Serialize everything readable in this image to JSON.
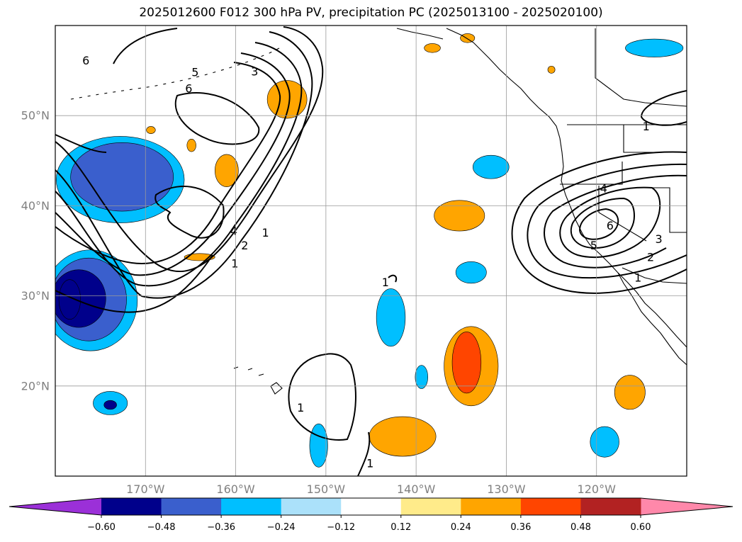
{
  "chart_data": {
    "type": "heatmap",
    "title": "2025012600 F012 300 hPa PV, precipitation PC (2025013100 - 2025020100)",
    "map": {
      "lon_range": [
        -180,
        -110
      ],
      "lat_range": [
        10,
        60
      ],
      "lat_ticks": [
        {
          "value": 20,
          "label": "20°N"
        },
        {
          "value": 30,
          "label": "30°N"
        },
        {
          "value": 40,
          "label": "40°N"
        },
        {
          "value": 50,
          "label": "50°N"
        }
      ],
      "lon_ticks": [
        {
          "value": -170,
          "label": "170°W"
        },
        {
          "value": -160,
          "label": "160°W"
        },
        {
          "value": -150,
          "label": "150°W"
        },
        {
          "value": -140,
          "label": "140°W"
        },
        {
          "value": -130,
          "label": "130°W"
        },
        {
          "value": -120,
          "label": "120°W"
        }
      ],
      "grid": true
    },
    "colorbar": {
      "levels": [
        -0.6,
        -0.48,
        -0.36,
        -0.24,
        -0.12,
        0.12,
        0.24,
        0.36,
        0.48,
        0.6
      ],
      "tick_labels": [
        "−0.60",
        "−0.48",
        "−0.36",
        "−0.24",
        "−0.12",
        "0.12",
        "0.24",
        "0.36",
        "0.48",
        "0.60"
      ],
      "colors": [
        "#9b30d8",
        "#00008b",
        "#3a5fcd",
        "#00bfff",
        "#abe1fa",
        "#ffffff",
        "#ffeb8a",
        "#ffa500",
        "#ff4500",
        "#b22222",
        "#ff88aa"
      ],
      "extend": "both"
    },
    "pv_contour_labels": [
      {
        "text": "6",
        "lon": -176.6,
        "lat": 56.1
      },
      {
        "text": "5",
        "lon": -164.5,
        "lat": 54.8
      },
      {
        "text": "3",
        "lon": -157.9,
        "lat": 54.9
      },
      {
        "text": "6",
        "lon": -165.2,
        "lat": 53.0
      },
      {
        "text": "4",
        "lon": -160.2,
        "lat": 37.2
      },
      {
        "text": "2",
        "lon": -159.0,
        "lat": 35.6
      },
      {
        "text": "1",
        "lon": -156.7,
        "lat": 37.0
      },
      {
        "text": "1",
        "lon": -143.4,
        "lat": 31.5
      },
      {
        "text": "1",
        "lon": -160.1,
        "lat": 33.6
      },
      {
        "text": "1",
        "lon": -152.8,
        "lat": 17.6
      },
      {
        "text": "1",
        "lon": -145.1,
        "lat": 11.4
      },
      {
        "text": "4",
        "lon": -119.2,
        "lat": 41.9
      },
      {
        "text": "6",
        "lon": -118.5,
        "lat": 37.8
      },
      {
        "text": "5",
        "lon": -120.3,
        "lat": 35.6
      },
      {
        "text": "3",
        "lon": -113.1,
        "lat": 36.3
      },
      {
        "text": "2",
        "lon": -114.0,
        "lat": 34.3
      },
      {
        "text": "1",
        "lon": -115.4,
        "lat": 32.0
      },
      {
        "text": "1",
        "lon": -114.5,
        "lat": 48.8
      }
    ],
    "precip_anomalies": [
      {
        "level": -0.6,
        "lon": -178.4,
        "lat": 29.6,
        "rx": 1.2,
        "ry": 2.2
      },
      {
        "level": -0.48,
        "lon": -177.4,
        "lat": 29.7,
        "rx": 3.0,
        "ry": 3.2
      },
      {
        "level": -0.36,
        "lon": -176.3,
        "lat": 29.6,
        "rx": 4.2,
        "ry": 4.6
      },
      {
        "level": -0.24,
        "lon": -176.1,
        "lat": 29.5,
        "rx": 5.2,
        "ry": 5.6
      },
      {
        "level": -0.36,
        "lon": -172.6,
        "lat": 43.2,
        "rx": 5.7,
        "ry": 3.8
      },
      {
        "level": -0.24,
        "lon": -172.8,
        "lat": 42.9,
        "rx": 7.1,
        "ry": 4.8
      },
      {
        "level": -0.48,
        "lon": -173.9,
        "lat": 17.9,
        "rx": 0.7,
        "ry": 0.5
      },
      {
        "level": -0.24,
        "lon": -173.9,
        "lat": 18.1,
        "rx": 1.9,
        "ry": 1.3
      },
      {
        "level": -0.24,
        "lon": -142.8,
        "lat": 27.6,
        "rx": 1.6,
        "ry": 3.2
      },
      {
        "level": -0.24,
        "lon": -139.4,
        "lat": 21.0,
        "rx": 0.7,
        "ry": 1.3
      },
      {
        "level": -0.24,
        "lon": -150.8,
        "lat": 13.4,
        "rx": 1.0,
        "ry": 2.4
      },
      {
        "level": -0.24,
        "lon": -133.9,
        "lat": 32.6,
        "rx": 1.7,
        "ry": 1.2
      },
      {
        "level": -0.24,
        "lon": -131.7,
        "lat": 44.3,
        "rx": 2.0,
        "ry": 1.3
      },
      {
        "level": -0.24,
        "lon": -119.1,
        "lat": 13.8,
        "rx": 1.6,
        "ry": 1.7
      },
      {
        "level": -0.24,
        "lon": -113.6,
        "lat": 57.5,
        "rx": 3.2,
        "ry": 1.0
      },
      {
        "level": 0.36,
        "lon": -134.4,
        "lat": 22.6,
        "rx": 1.6,
        "ry": 3.4
      },
      {
        "level": 0.24,
        "lon": -133.9,
        "lat": 22.2,
        "rx": 3.0,
        "ry": 4.4
      },
      {
        "level": 0.24,
        "lon": -135.2,
        "lat": 38.9,
        "rx": 2.8,
        "ry": 1.7
      },
      {
        "level": 0.24,
        "lon": -141.5,
        "lat": 14.4,
        "rx": 3.7,
        "ry": 2.2
      },
      {
        "level": 0.24,
        "lon": -154.3,
        "lat": 51.8,
        "rx": 2.2,
        "ry": 2.1
      },
      {
        "level": 0.24,
        "lon": -161.0,
        "lat": 43.9,
        "rx": 1.3,
        "ry": 1.8
      },
      {
        "level": 0.24,
        "lon": -116.3,
        "lat": 19.3,
        "rx": 1.7,
        "ry": 1.9
      },
      {
        "level": 0.24,
        "lon": -164.9,
        "lat": 46.7,
        "rx": 0.5,
        "ry": 0.7
      },
      {
        "level": 0.24,
        "lon": -169.4,
        "lat": 48.4,
        "rx": 0.5,
        "ry": 0.4
      },
      {
        "level": 0.24,
        "lon": -134.3,
        "lat": 58.6,
        "rx": 0.8,
        "ry": 0.5
      },
      {
        "level": 0.24,
        "lon": -138.2,
        "lat": 57.5,
        "rx": 0.9,
        "ry": 0.5
      },
      {
        "level": 0.24,
        "lon": -164.0,
        "lat": 34.3,
        "rx": 1.7,
        "ry": 0.4
      },
      {
        "level": 0.24,
        "lon": -125.0,
        "lat": 55.1,
        "rx": 0.4,
        "ry": 0.4
      }
    ]
  }
}
